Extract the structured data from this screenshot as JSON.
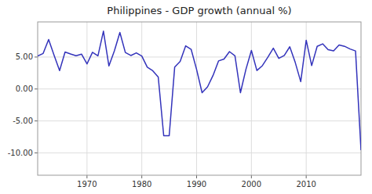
{
  "chart_data": {
    "type": "line",
    "title": "Philippines - GDP growth (annual %)",
    "x": [
      1961,
      1962,
      1963,
      1964,
      1965,
      1966,
      1967,
      1968,
      1969,
      1970,
      1971,
      1972,
      1973,
      1974,
      1975,
      1976,
      1977,
      1978,
      1979,
      1980,
      1981,
      1982,
      1983,
      1984,
      1985,
      1986,
      1987,
      1988,
      1989,
      1990,
      1991,
      1992,
      1993,
      1994,
      1995,
      1996,
      1997,
      1998,
      1999,
      2000,
      2001,
      2002,
      2003,
      2004,
      2005,
      2006,
      2007,
      2008,
      2009,
      2010,
      2011,
      2012,
      2013,
      2014,
      2015,
      2016,
      2017,
      2018,
      2019,
      2020
    ],
    "values": [
      5.15,
      5.56,
      7.74,
      5.26,
      2.88,
      5.78,
      5.48,
      5.21,
      5.45,
      3.92,
      5.74,
      5.18,
      9.05,
      3.61,
      5.96,
      8.84,
      5.71,
      5.24,
      5.65,
      5.15,
      3.42,
      2.85,
      1.87,
      -7.32,
      -7.32,
      3.42,
      4.31,
      6.75,
      6.21,
      3.04,
      -0.58,
      0.34,
      2.12,
      4.39,
      4.68,
      5.85,
      5.19,
      -0.58,
      3.08,
      6.03,
      2.89,
      3.65,
      4.97,
      6.38,
      4.78,
      5.24,
      6.61,
      4.15,
      1.15,
      7.63,
      3.66,
      6.68,
      7.06,
      6.15,
      5.97,
      6.89,
      6.68,
      6.26,
      5.95,
      -9.57
    ],
    "color": "#3333bb",
    "xlim": [
      1961,
      2020
    ],
    "ylim": [
      -13.5,
      10.5
    ],
    "xticks": [
      1970,
      1980,
      1990,
      2000,
      2010
    ],
    "yticks": [
      {
        "value": -10,
        "label": "-10.00"
      },
      {
        "value": -5,
        "label": "-5.00"
      },
      {
        "value": 0,
        "label": "0.00"
      },
      {
        "value": 5,
        "label": "5.00"
      }
    ],
    "grid": true
  }
}
